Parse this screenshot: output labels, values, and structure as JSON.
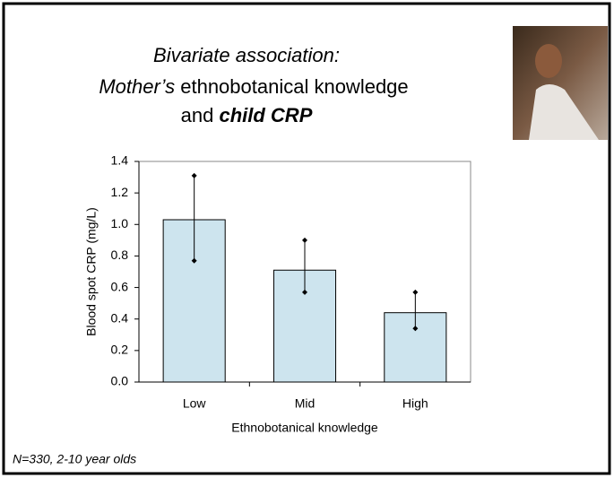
{
  "chart_data": {
    "type": "bar",
    "title": [
      "Bivariate association:",
      "Mother’s",
      "ethnobotanical knowledge",
      "and",
      "child CRP"
    ],
    "categories": [
      "Low",
      "Mid",
      "High"
    ],
    "values": [
      1.03,
      0.71,
      0.44
    ],
    "error_low": [
      0.77,
      0.57,
      0.34
    ],
    "error_high": [
      1.31,
      0.9,
      0.57
    ],
    "color": "#cde4ee",
    "ylim": [
      0,
      1.4
    ],
    "yticks": [
      {
        "value": 0,
        "label": "0.0"
      },
      0.2,
      0.4,
      0.6,
      0.8,
      {
        "value": 1,
        "label": "1.0"
      },
      1.2,
      1.4
    ],
    "ylabel": "Blood spot CRP (mg/L)",
    "xlabel": "Ethnobotanical knowledge",
    "footnote": "N=330, 2-10 year olds",
    "grid": false
  }
}
